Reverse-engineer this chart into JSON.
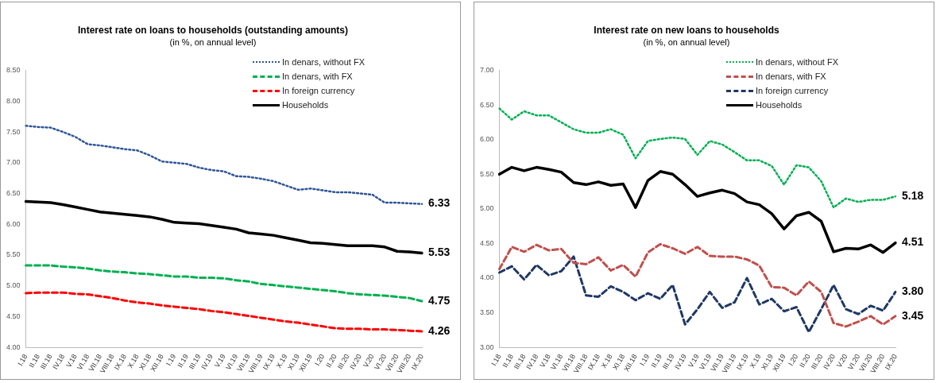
{
  "chart_data": [
    {
      "type": "line",
      "title": "Interest rate on loans to households (outstanding amounts)",
      "subtitle": "(in %, on annual level)",
      "categories": [
        "I.18",
        "II.18",
        "III.18",
        "IV.18",
        "V.18",
        "VI.18",
        "VII.18",
        "VIII.18",
        "IX.18",
        "X.18",
        "XI.18",
        "XII.18",
        "I.19",
        "II.19",
        "III.19",
        "IV.19",
        "V.19",
        "VI.19",
        "VII.19",
        "VIII.19",
        "IX.19",
        "X.19",
        "XI.19",
        "XII.19",
        "I.20",
        "II.20",
        "III.20",
        "IV.20",
        "V.20",
        "VI.20",
        "VII.20",
        "VIII.20",
        "IX.20"
      ],
      "series": [
        {
          "name": "In denars, without FX",
          "color": "#2f5597",
          "line_style": "dotted",
          "values": [
            7.6,
            7.58,
            7.57,
            7.5,
            7.42,
            7.3,
            7.28,
            7.25,
            7.22,
            7.2,
            7.12,
            7.02,
            7.0,
            6.98,
            6.92,
            6.88,
            6.86,
            6.78,
            6.77,
            6.74,
            6.7,
            6.63,
            6.56,
            6.58,
            6.55,
            6.52,
            6.52,
            6.5,
            6.48,
            6.35,
            6.35,
            6.34,
            6.33
          ]
        },
        {
          "name": "In denars, with FX",
          "color": "#00b050",
          "line_style": "dashed",
          "values": [
            5.33,
            5.33,
            5.33,
            5.31,
            5.3,
            5.28,
            5.25,
            5.23,
            5.22,
            5.2,
            5.19,
            5.17,
            5.15,
            5.15,
            5.13,
            5.13,
            5.12,
            5.09,
            5.07,
            5.03,
            5.01,
            4.99,
            4.97,
            4.95,
            4.93,
            4.91,
            4.88,
            4.86,
            4.85,
            4.84,
            4.82,
            4.8,
            4.75
          ]
        },
        {
          "name": "In foreign currency",
          "color": "#ff0000",
          "line_style": "dashed",
          "values": [
            4.88,
            4.89,
            4.89,
            4.89,
            4.87,
            4.86,
            4.83,
            4.8,
            4.76,
            4.73,
            4.71,
            4.68,
            4.66,
            4.64,
            4.62,
            4.59,
            4.57,
            4.54,
            4.51,
            4.48,
            4.45,
            4.42,
            4.4,
            4.37,
            4.34,
            4.31,
            4.3,
            4.3,
            4.29,
            4.29,
            4.28,
            4.27,
            4.26
          ]
        },
        {
          "name": "Households",
          "color": "#000000",
          "line_style": "solid",
          "values": [
            6.37,
            6.36,
            6.35,
            6.32,
            6.28,
            6.24,
            6.2,
            6.18,
            6.16,
            6.14,
            6.12,
            6.08,
            6.03,
            6.02,
            6.01,
            5.98,
            5.95,
            5.92,
            5.86,
            5.84,
            5.82,
            5.78,
            5.74,
            5.7,
            5.69,
            5.67,
            5.65,
            5.65,
            5.65,
            5.63,
            5.56,
            5.55,
            5.53
          ]
        }
      ],
      "ylim": [
        4,
        8.5
      ],
      "yticks": [
        {
          "value": 4,
          "label": "4.00"
        },
        {
          "value": 4.5,
          "label": "4.50"
        },
        {
          "value": 5,
          "label": "5.00"
        },
        {
          "value": 5.5,
          "label": "5.50"
        },
        {
          "value": 6,
          "label": "6.00"
        },
        {
          "value": 6.5,
          "label": "6.50"
        },
        {
          "value": 7,
          "label": "7.00"
        },
        {
          "value": 7.5,
          "label": "7.50"
        },
        {
          "value": 8,
          "label": "8.00"
        },
        {
          "value": 8.5,
          "label": "8.50"
        }
      ],
      "grid": false,
      "legend": "top right",
      "marker": "none",
      "annotations": [
        {
          "text": "6.33",
          "x": "IX.20",
          "y": 6.33
        },
        {
          "text": "5.53",
          "x": "IX.20",
          "y": 5.53
        },
        {
          "text": "4.75",
          "x": "IX.20",
          "y": 4.75
        },
        {
          "text": "4.26",
          "x": "IX.20",
          "y": 4.26
        }
      ]
    },
    {
      "type": "line",
      "title": "Interest rate on new loans to households",
      "subtitle": "(in %, on annual level)",
      "categories": [
        "I.18",
        "II.18",
        "III.18",
        "IV.18",
        "V.18",
        "VI.18",
        "VII.18",
        "VIII.18",
        "IX.18",
        "X.18",
        "XI.18",
        "XII.18",
        "I.19",
        "II.19",
        "III.19",
        "IV.19",
        "V.19",
        "VI.19",
        "VII.19",
        "VIII.19",
        "IX.19",
        "X.19",
        "XI.19",
        "XII.19",
        "I.20",
        "II.20",
        "III.20",
        "IV.20",
        "V.20",
        "VI.20",
        "VII.20",
        "VIII.20",
        "IX.20"
      ],
      "series": [
        {
          "name": "In denars, without FX",
          "color": "#00b050",
          "line_style": "dotted",
          "values": [
            6.45,
            6.29,
            6.41,
            6.35,
            6.35,
            6.25,
            6.15,
            6.1,
            6.1,
            6.15,
            6.07,
            5.73,
            5.98,
            6.01,
            6.03,
            6.01,
            5.78,
            5.98,
            5.93,
            5.82,
            5.7,
            5.7,
            5.62,
            5.35,
            5.63,
            5.6,
            5.4,
            5.02,
            5.15,
            5.1,
            5.13,
            5.13,
            5.18
          ]
        },
        {
          "name": "In denars, with FX",
          "color": "#c0504d",
          "line_style": "dashed",
          "values": [
            4.13,
            4.45,
            4.38,
            4.48,
            4.4,
            4.42,
            4.22,
            4.2,
            4.3,
            4.11,
            4.19,
            4.02,
            4.37,
            4.49,
            4.43,
            4.35,
            4.45,
            4.32,
            4.31,
            4.31,
            4.27,
            4.18,
            3.87,
            3.86,
            3.75,
            3.95,
            3.8,
            3.35,
            3.3,
            3.37,
            3.45,
            3.33,
            3.45
          ]
        },
        {
          "name": "In foreign currency",
          "color": "#1f3864",
          "line_style": "dashed",
          "values": [
            4.08,
            4.17,
            3.98,
            4.19,
            4.04,
            4.1,
            4.31,
            3.75,
            3.73,
            3.88,
            3.8,
            3.68,
            3.78,
            3.7,
            3.9,
            3.33,
            3.55,
            3.8,
            3.57,
            3.65,
            4.0,
            3.62,
            3.7,
            3.52,
            3.58,
            3.22,
            3.55,
            3.9,
            3.55,
            3.48,
            3.6,
            3.53,
            3.8
          ]
        },
        {
          "name": "Households",
          "color": "#000000",
          "line_style": "solid",
          "values": [
            5.5,
            5.6,
            5.55,
            5.6,
            5.57,
            5.53,
            5.38,
            5.35,
            5.39,
            5.34,
            5.36,
            5.02,
            5.41,
            5.54,
            5.5,
            5.35,
            5.18,
            5.23,
            5.27,
            5.22,
            5.1,
            5.06,
            4.93,
            4.71,
            4.9,
            4.95,
            4.82,
            4.38,
            4.43,
            4.42,
            4.48,
            4.37,
            4.51
          ]
        }
      ],
      "ylim": [
        3,
        7
      ],
      "yticks": [
        {
          "value": 3,
          "label": "3.00"
        },
        {
          "value": 3.5,
          "label": "3.50"
        },
        {
          "value": 4,
          "label": "4.00"
        },
        {
          "value": 4.5,
          "label": "4.50"
        },
        {
          "value": 5,
          "label": "5.00"
        },
        {
          "value": 5.5,
          "label": "5.50"
        },
        {
          "value": 6,
          "label": "6.00"
        },
        {
          "value": 6.5,
          "label": "6.50"
        },
        {
          "value": 7,
          "label": "7.00"
        }
      ],
      "grid": false,
      "legend": "top right",
      "marker": "none",
      "annotations": [
        {
          "text": "5.18",
          "x": "IX.20",
          "y": 5.18
        },
        {
          "text": "4.51",
          "x": "IX.20",
          "y": 4.51
        },
        {
          "text": "3.80",
          "x": "IX.20",
          "y": 3.8
        },
        {
          "text": "3.45",
          "x": "IX.20",
          "y": 3.45
        }
      ]
    }
  ]
}
